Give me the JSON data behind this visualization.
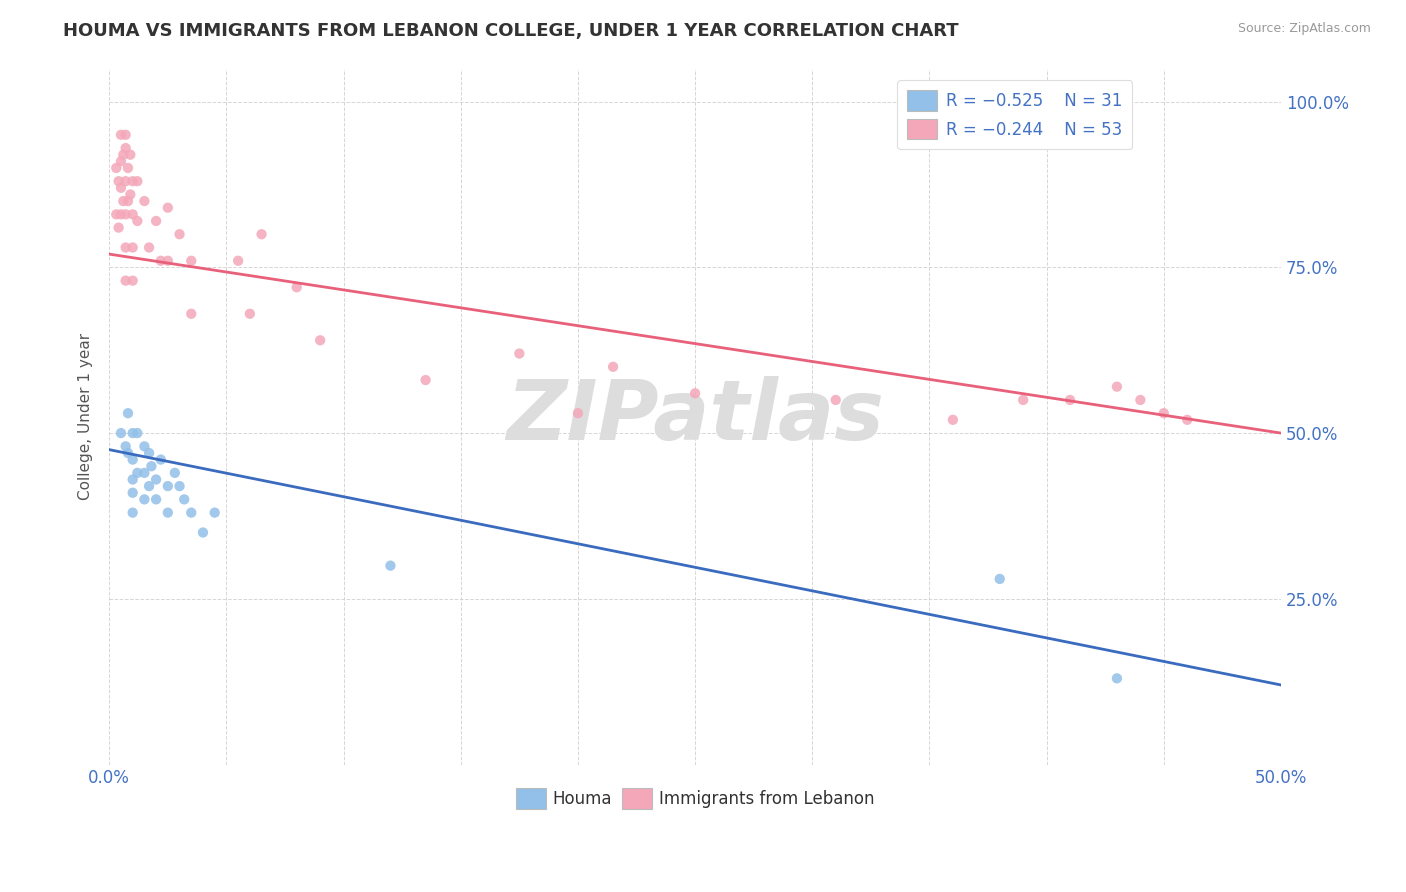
{
  "title": "HOUMA VS IMMIGRANTS FROM LEBANON COLLEGE, UNDER 1 YEAR CORRELATION CHART",
  "source": "Source: ZipAtlas.com",
  "ylabel": "College, Under 1 year",
  "xlim": [
    0.0,
    0.5
  ],
  "ylim": [
    0.0,
    1.05
  ],
  "xticks": [
    0.0,
    0.05,
    0.1,
    0.15,
    0.2,
    0.25,
    0.3,
    0.35,
    0.4,
    0.45,
    0.5
  ],
  "yticks": [
    0.0,
    0.25,
    0.5,
    0.75,
    1.0
  ],
  "ytick_labels_right": [
    "",
    "25.0%",
    "50.0%",
    "75.0%",
    "100.0%"
  ],
  "color_blue": "#92C0E8",
  "color_pink": "#F4A7B9",
  "line_blue": "#3A6BBF",
  "line_pink": "#E8607A",
  "watermark": "ZIPatlas",
  "houma_x": [
    0.005,
    0.007,
    0.008,
    0.008,
    0.01,
    0.01,
    0.01,
    0.01,
    0.01,
    0.012,
    0.012,
    0.015,
    0.015,
    0.015,
    0.017,
    0.017,
    0.018,
    0.02,
    0.02,
    0.022,
    0.025,
    0.025,
    0.028,
    0.03,
    0.032,
    0.035,
    0.04,
    0.045,
    0.12,
    0.38,
    0.43
  ],
  "houma_y": [
    0.5,
    0.48,
    0.53,
    0.47,
    0.5,
    0.46,
    0.43,
    0.41,
    0.38,
    0.5,
    0.44,
    0.48,
    0.44,
    0.4,
    0.47,
    0.42,
    0.45,
    0.43,
    0.4,
    0.46,
    0.42,
    0.38,
    0.44,
    0.42,
    0.4,
    0.38,
    0.35,
    0.38,
    0.3,
    0.28,
    0.13
  ],
  "leb_x": [
    0.003,
    0.003,
    0.004,
    0.004,
    0.005,
    0.005,
    0.005,
    0.005,
    0.006,
    0.006,
    0.007,
    0.007,
    0.007,
    0.007,
    0.007,
    0.007,
    0.008,
    0.008,
    0.009,
    0.009,
    0.01,
    0.01,
    0.01,
    0.01,
    0.012,
    0.012,
    0.015,
    0.017,
    0.02,
    0.022,
    0.025,
    0.025,
    0.03,
    0.035,
    0.035,
    0.055,
    0.06,
    0.065,
    0.08,
    0.09,
    0.135,
    0.175,
    0.2,
    0.215,
    0.25,
    0.31,
    0.36,
    0.39,
    0.41,
    0.43,
    0.44,
    0.45,
    0.46
  ],
  "leb_y": [
    0.9,
    0.83,
    0.88,
    0.81,
    0.95,
    0.91,
    0.87,
    0.83,
    0.92,
    0.85,
    0.93,
    0.88,
    0.83,
    0.78,
    0.73,
    0.95,
    0.9,
    0.85,
    0.92,
    0.86,
    0.88,
    0.83,
    0.78,
    0.73,
    0.88,
    0.82,
    0.85,
    0.78,
    0.82,
    0.76,
    0.84,
    0.76,
    0.8,
    0.76,
    0.68,
    0.76,
    0.68,
    0.8,
    0.72,
    0.64,
    0.58,
    0.62,
    0.53,
    0.6,
    0.56,
    0.55,
    0.52,
    0.55,
    0.55,
    0.57,
    0.55,
    0.53,
    0.52
  ],
  "houma_line_x0": 0.0,
  "houma_line_y0": 0.475,
  "houma_line_x1": 0.5,
  "houma_line_y1": 0.12,
  "leb_line_x0": 0.0,
  "leb_line_y0": 0.77,
  "leb_line_x1": 0.5,
  "leb_line_y1": 0.5
}
